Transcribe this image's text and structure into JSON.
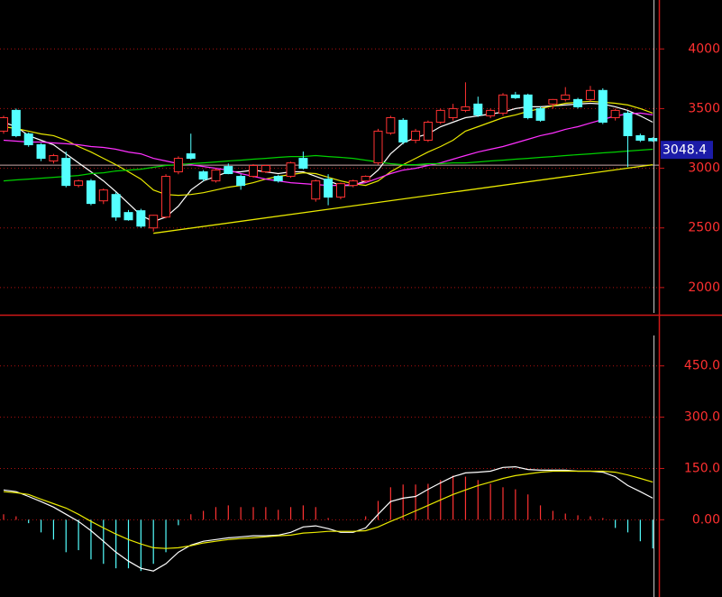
{
  "chart_data": [
    {
      "type": "candlestick",
      "ylim": [
        1780,
        4410
      ],
      "yticks": [
        2000,
        2500,
        3000,
        3500,
        4000
      ],
      "grid": true,
      "up_color": "#ff3232",
      "down_color": "#54ffff",
      "open": [
        3311,
        3485,
        3288,
        3197,
        3061,
        3083,
        2856,
        2894,
        2727,
        2780,
        2629,
        2644,
        2500,
        2591,
        2970,
        3121,
        2970,
        2894,
        3015,
        2932,
        2932,
        2970,
        2932,
        2932,
        3083,
        2742,
        2909,
        2758,
        2856,
        2894,
        3045,
        3295,
        3402,
        3235,
        3235,
        3386,
        3424,
        3485,
        3538,
        3439,
        3462,
        3614,
        3614,
        3500,
        3538,
        3576,
        3576,
        3576,
        3652,
        3424,
        3462,
        3273,
        3250
      ],
      "high": [
        3440,
        3500,
        3300,
        3210,
        3120,
        3140,
        2905,
        2910,
        2830,
        2800,
        2650,
        2660,
        2610,
        2950,
        3100,
        3290,
        2985,
        3000,
        3040,
        2950,
        3035,
        3030,
        2945,
        3055,
        3140,
        2905,
        2950,
        2880,
        2905,
        2940,
        3330,
        3440,
        3420,
        3330,
        3400,
        3500,
        3540,
        3720,
        3600,
        3500,
        3630,
        3640,
        3625,
        3520,
        3580,
        3680,
        3590,
        3690,
        3670,
        3500,
        3480,
        3290,
        3260
      ],
      "low": [
        3290,
        3260,
        3180,
        3060,
        3040,
        2840,
        2840,
        2690,
        2700,
        2560,
        2560,
        2500,
        2470,
        2580,
        2950,
        3070,
        2890,
        2880,
        2950,
        2820,
        2920,
        2960,
        2880,
        2920,
        2990,
        2720,
        2690,
        2740,
        2840,
        2880,
        3030,
        3280,
        3200,
        3210,
        3220,
        3370,
        3400,
        3470,
        3430,
        3420,
        3440,
        3580,
        3410,
        3390,
        3500,
        3560,
        3500,
        3560,
        3370,
        3400,
        3010,
        3220,
        3220
      ],
      "close": [
        3424,
        3273,
        3197,
        3083,
        3106,
        2856,
        2894,
        2705,
        2818,
        2591,
        2568,
        2515,
        2606,
        2932,
        3083,
        3083,
        2909,
        2985,
        2955,
        2856,
        3023,
        3023,
        2894,
        3045,
        3000,
        2894,
        2758,
        2871,
        2894,
        2932,
        3311,
        3424,
        3220,
        3311,
        3386,
        3485,
        3500,
        3515,
        3447,
        3485,
        3614,
        3591,
        3424,
        3402,
        3576,
        3614,
        3515,
        3652,
        3386,
        3485,
        3273,
        3235,
        3230
      ],
      "lines": [
        {
          "color": "#ffffff",
          "values": [
            3386,
            3348,
            3273,
            3235,
            3197,
            3121,
            3045,
            2970,
            2894,
            2803,
            2705,
            2606,
            2553,
            2591,
            2682,
            2818,
            2894,
            2932,
            2970,
            2970,
            2985,
            2970,
            2955,
            2970,
            2970,
            2932,
            2894,
            2856,
            2856,
            2894,
            2985,
            3121,
            3212,
            3258,
            3288,
            3348,
            3386,
            3424,
            3439,
            3455,
            3470,
            3500,
            3515,
            3515,
            3523,
            3530,
            3538,
            3545,
            3538,
            3515,
            3485,
            3439,
            3386
          ]
        },
        {
          "color": "#e8e800",
          "values": [
            3348,
            3333,
            3311,
            3288,
            3273,
            3235,
            3182,
            3136,
            3083,
            3030,
            2970,
            2909,
            2818,
            2780,
            2773,
            2780,
            2795,
            2818,
            2841,
            2856,
            2879,
            2909,
            2932,
            2947,
            2962,
            2955,
            2924,
            2894,
            2871,
            2856,
            2894,
            2970,
            3030,
            3083,
            3136,
            3182,
            3235,
            3311,
            3348,
            3386,
            3424,
            3447,
            3477,
            3500,
            3523,
            3545,
            3553,
            3561,
            3553,
            3545,
            3530,
            3500,
            3462
          ]
        },
        {
          "color": "#ff30ff",
          "values": [
            3235,
            3227,
            3220,
            3220,
            3212,
            3205,
            3197,
            3182,
            3174,
            3159,
            3136,
            3121,
            3083,
            3061,
            3038,
            3030,
            3015,
            3000,
            2985,
            2955,
            2932,
            2909,
            2894,
            2879,
            2871,
            2864,
            2856,
            2856,
            2864,
            2879,
            2917,
            2955,
            2985,
            3000,
            3023,
            3045,
            3076,
            3106,
            3136,
            3159,
            3182,
            3212,
            3242,
            3273,
            3295,
            3326,
            3348,
            3379,
            3409,
            3439,
            3455,
            3462,
            3447
          ]
        },
        {
          "color": "#00d000",
          "values": [
            2894,
            2902,
            2909,
            2917,
            2924,
            2932,
            2939,
            2955,
            2962,
            2977,
            2985,
            2992,
            3008,
            3023,
            3030,
            3038,
            3045,
            3053,
            3061,
            3068,
            3076,
            3083,
            3091,
            3098,
            3098,
            3106,
            3098,
            3091,
            3083,
            3068,
            3053,
            3038,
            3030,
            3030,
            3038,
            3038,
            3045,
            3045,
            3053,
            3061,
            3068,
            3076,
            3083,
            3091,
            3098,
            3106,
            3114,
            3121,
            3129,
            3136,
            3144,
            3152,
            3159
          ]
        }
      ],
      "trendline": {
        "color": "#e8e800",
        "x": [
          12,
          52
        ],
        "y": [
          2455,
          3030
        ]
      },
      "last_price": 3048.4
    },
    {
      "type": "macd",
      "ylim": [
        -226,
        597
      ],
      "yticks": [
        {
          "value": 0,
          "label": "0.00"
        },
        {
          "value": 150,
          "label": "150.0"
        },
        {
          "value": 300,
          "label": "300.0"
        },
        {
          "value": 450,
          "label": "450.0"
        }
      ],
      "grid": true,
      "up_color": "#ff3232",
      "down_color": "#54ffff",
      "values": [
        16,
        10,
        -10,
        -37,
        -58,
        -95,
        -89,
        -116,
        -129,
        -142,
        -142,
        -150,
        -129,
        -95,
        -16,
        16,
        26,
        37,
        42,
        37,
        37,
        37,
        29,
        37,
        42,
        37,
        5,
        0,
        0,
        10,
        55,
        95,
        103,
        103,
        105,
        116,
        129,
        126,
        116,
        105,
        95,
        89,
        74,
        42,
        26,
        18,
        13,
        10,
        5,
        -24,
        -37,
        -63,
        -84
      ],
      "series": [
        {
          "color": "#ffffff",
          "values": [
            87,
            82,
            68,
            53,
            37,
            16,
            -5,
            -32,
            -63,
            -95,
            -121,
            -142,
            -150,
            -129,
            -95,
            -74,
            -63,
            -58,
            -53,
            -50,
            -47,
            -47,
            -45,
            -37,
            -21,
            -18,
            -26,
            -37,
            -37,
            -24,
            16,
            53,
            63,
            68,
            89,
            108,
            126,
            137,
            139,
            142,
            153,
            155,
            147,
            145,
            145,
            145,
            142,
            142,
            139,
            126,
            100,
            82,
            63
          ]
        },
        {
          "color": "#e8e800",
          "values": [
            82,
            79,
            74,
            60,
            47,
            34,
            16,
            -5,
            -24,
            -42,
            -58,
            -71,
            -82,
            -84,
            -82,
            -76,
            -68,
            -63,
            -58,
            -55,
            -53,
            -50,
            -47,
            -45,
            -39,
            -37,
            -34,
            -34,
            -34,
            -32,
            -21,
            -5,
            10,
            26,
            42,
            58,
            74,
            87,
            100,
            110,
            121,
            129,
            134,
            139,
            142,
            142,
            142,
            142,
            142,
            139,
            131,
            121,
            110
          ]
        }
      ]
    }
  ]
}
